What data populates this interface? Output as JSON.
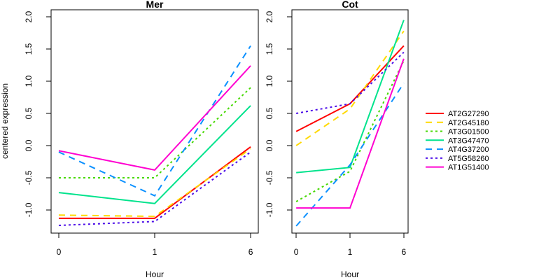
{
  "figure": {
    "background": "#FFFFFF",
    "axis_color": "#000000",
    "kind": "two-panel centered expression profile plot"
  },
  "shared": {
    "ylabel": "centered expression",
    "xlabel": "Hour",
    "x_tick_labels": [
      "0",
      "1",
      "6"
    ],
    "ytick_labels": [
      "2.0",
      "1.5",
      "1.0",
      "0.5",
      "0.0",
      "-0.5",
      "-1.0"
    ]
  },
  "legend": {
    "position": "right-outside",
    "border": "none",
    "entries": [
      {
        "label": "AT2G27290",
        "color": "#FF0000",
        "line_style": "solid"
      },
      {
        "label": "AT2G45180",
        "color": "#FFD900",
        "line_style": "dashed"
      },
      {
        "label": "AT3G01500",
        "color": "#45D800",
        "line_style": "dotted"
      },
      {
        "label": "AT3G47470",
        "color": "#00E38C",
        "line_style": "solid"
      },
      {
        "label": "AT4G37200",
        "color": "#0A90FF",
        "line_style": "dashed"
      },
      {
        "label": "AT5G58260",
        "color": "#4B0CE8",
        "line_style": "dotted"
      },
      {
        "label": "AT1G51400",
        "color": "#FF00D0",
        "line_style": "solid"
      }
    ]
  },
  "chart_data": [
    {
      "type": "line",
      "title": "Mer",
      "xlabel": "Hour",
      "ylabel": "centered expression",
      "categories": [
        "0",
        "1",
        "6"
      ],
      "x_scale": "equally-spaced-categories",
      "grid": false,
      "yticks": [
        2,
        1.5,
        1,
        0.5,
        0,
        -0.5,
        -1
      ],
      "ytick_labels": [
        "2.0",
        "1.5",
        "1.0",
        "0.5",
        "0.0",
        "-0.5",
        "-1.0"
      ],
      "ylim": [
        -1.36,
        2.11
      ],
      "series": [
        {
          "name": "AT2G27290",
          "color": "#FF0000",
          "line_style": "solid",
          "values": [
            -1.13,
            -1.13,
            -0.02
          ]
        },
        {
          "name": "AT2G45180",
          "color": "#FFD900",
          "line_style": "dashed",
          "values": [
            -1.08,
            -1.1,
            -0.05
          ]
        },
        {
          "name": "AT3G01500",
          "color": "#45D800",
          "line_style": "dotted",
          "values": [
            -0.5,
            -0.5,
            0.9
          ]
        },
        {
          "name": "AT3G47470",
          "color": "#00E38C",
          "line_style": "solid",
          "values": [
            -0.73,
            -0.9,
            0.62
          ]
        },
        {
          "name": "AT4G37200",
          "color": "#0A90FF",
          "line_style": "dashed",
          "values": [
            -0.1,
            -0.78,
            1.55
          ]
        },
        {
          "name": "AT5G58260",
          "color": "#4B0CE8",
          "line_style": "dotted",
          "values": [
            -1.24,
            -1.18,
            -0.1
          ]
        },
        {
          "name": "AT1G51400",
          "color": "#FF00D0",
          "line_style": "solid",
          "values": [
            -0.08,
            -0.38,
            1.24
          ]
        }
      ]
    },
    {
      "type": "line",
      "title": "Cot",
      "xlabel": "Hour",
      "ylabel": "centered expression",
      "categories": [
        "0",
        "1",
        "6"
      ],
      "x_scale": "equally-spaced-categories",
      "grid": false,
      "yticks": [
        2,
        1.5,
        1,
        0.5,
        0,
        -0.5,
        -1
      ],
      "ytick_labels": [
        "2.0",
        "1.5",
        "1.0",
        "0.5",
        "0.0",
        "-0.5",
        "-1.0"
      ],
      "ylim": [
        -1.36,
        2.11
      ],
      "series": [
        {
          "name": "AT2G27290",
          "color": "#FF0000",
          "line_style": "solid",
          "values": [
            0.22,
            0.65,
            1.55
          ]
        },
        {
          "name": "AT2G45180",
          "color": "#FFD900",
          "line_style": "dashed",
          "values": [
            0.0,
            0.57,
            1.78
          ]
        },
        {
          "name": "AT3G01500",
          "color": "#45D800",
          "line_style": "dotted",
          "values": [
            -0.87,
            -0.4,
            1.32
          ]
        },
        {
          "name": "AT3G47470",
          "color": "#00E38C",
          "line_style": "solid",
          "values": [
            -0.42,
            -0.34,
            1.95
          ]
        },
        {
          "name": "AT4G37200",
          "color": "#0A90FF",
          "line_style": "dashed",
          "values": [
            -1.25,
            -0.3,
            0.97
          ]
        },
        {
          "name": "AT5G58260",
          "color": "#4B0CE8",
          "line_style": "dotted",
          "values": [
            0.5,
            0.65,
            1.45
          ]
        },
        {
          "name": "AT1G51400",
          "color": "#FF00D0",
          "line_style": "solid",
          "values": [
            -0.97,
            -0.97,
            1.35
          ]
        }
      ]
    }
  ]
}
